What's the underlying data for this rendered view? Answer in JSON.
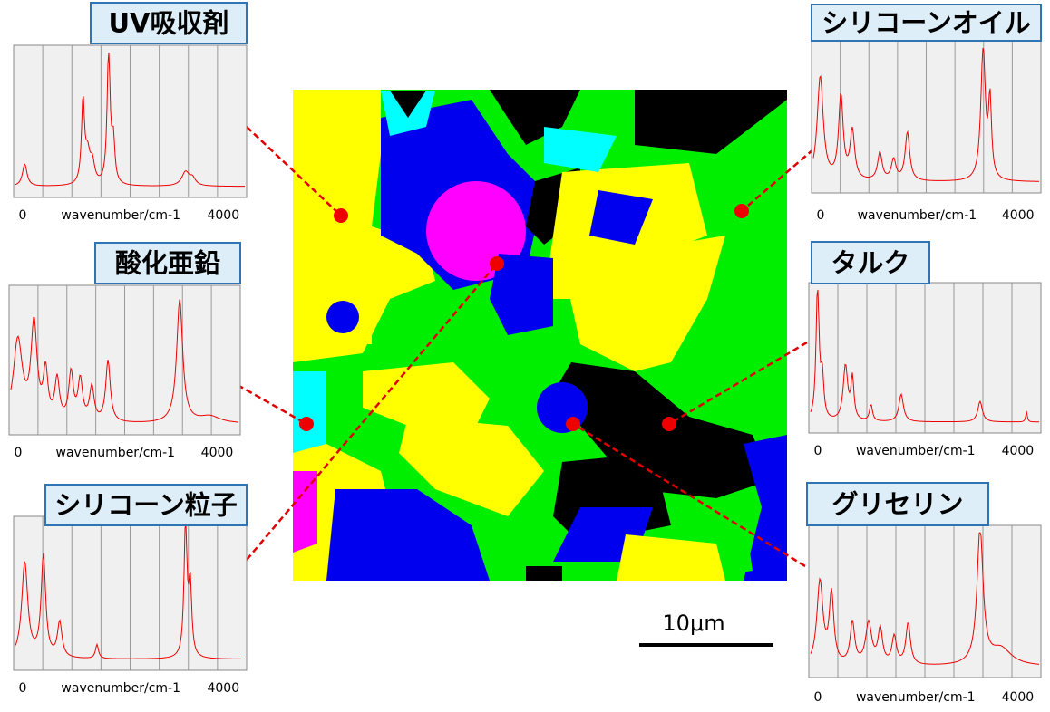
{
  "panels": [
    {
      "label": "UV吸収剤",
      "x_min_label": "0",
      "x_label": "wavenumber/cm-1",
      "x_max_label": "4000"
    },
    {
      "label": "酸化亜鉛",
      "x_min_label": "0",
      "x_label": "wavenumber/cm-1",
      "x_max_label": "4000"
    },
    {
      "label": "シリコーン粒子",
      "x_min_label": "0",
      "x_label": "wavenumber/cm-1",
      "x_max_label": "4000"
    },
    {
      "label": "シリコーンオイル",
      "x_min_label": "0",
      "x_label": "wavenumber/cm-1",
      "x_max_label": "4000"
    },
    {
      "label": "タルク",
      "x_min_label": "0",
      "x_label": "wavenumber/cm-1",
      "x_max_label": "4000"
    },
    {
      "label": "グリセリン",
      "x_min_label": "0",
      "x_label": "wavenumber/cm-1",
      "x_max_label": "4000"
    }
  ],
  "scale_bar": {
    "label": "10μm"
  }
}
